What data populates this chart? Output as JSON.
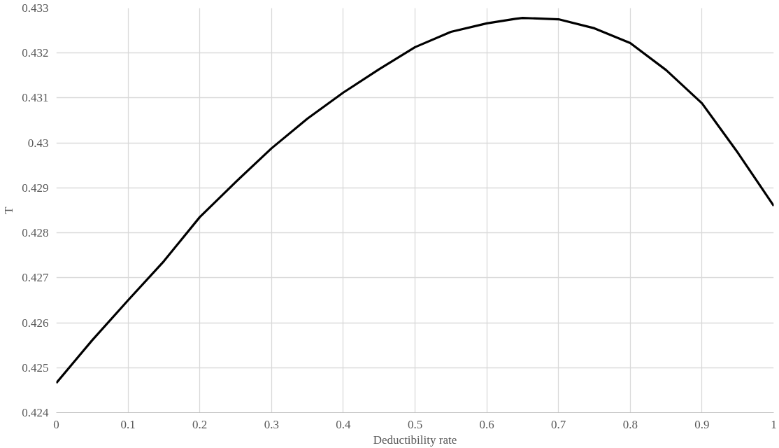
{
  "chart_data": {
    "type": "line",
    "xlabel": "Deductibility rate",
    "ylabel": "T",
    "series": [
      {
        "color": "#000000",
        "x": [
          0,
          0.05,
          0.1,
          0.15,
          0.2,
          0.25,
          0.3,
          0.35,
          0.4,
          0.45,
          0.5,
          0.55,
          0.6,
          0.64,
          0.65,
          0.7,
          0.75,
          0.8,
          0.85,
          0.9,
          0.95,
          1.0
        ],
        "values": [
          0.42466,
          0.42561,
          0.4265,
          0.42737,
          0.42835,
          0.42913,
          0.42988,
          0.43054,
          0.43112,
          0.43164,
          0.43213,
          0.43247,
          0.43266,
          0.43276,
          0.43278,
          0.43275,
          0.43255,
          0.43222,
          0.43162,
          0.43088,
          0.42978,
          0.4286
        ]
      }
    ],
    "xlim": [
      0,
      1
    ],
    "xticks": [
      0,
      0.1,
      0.2,
      0.3,
      0.4,
      0.5,
      0.6,
      0.7,
      0.8,
      0.9,
      1
    ],
    "ylim": [
      0.424,
      0.433
    ],
    "yticks": [
      0.424,
      0.425,
      0.426,
      0.427,
      0.428,
      0.429,
      0.43,
      0.431,
      0.432,
      0.433
    ],
    "grid": true,
    "marker": "none",
    "line_style": "solid"
  }
}
